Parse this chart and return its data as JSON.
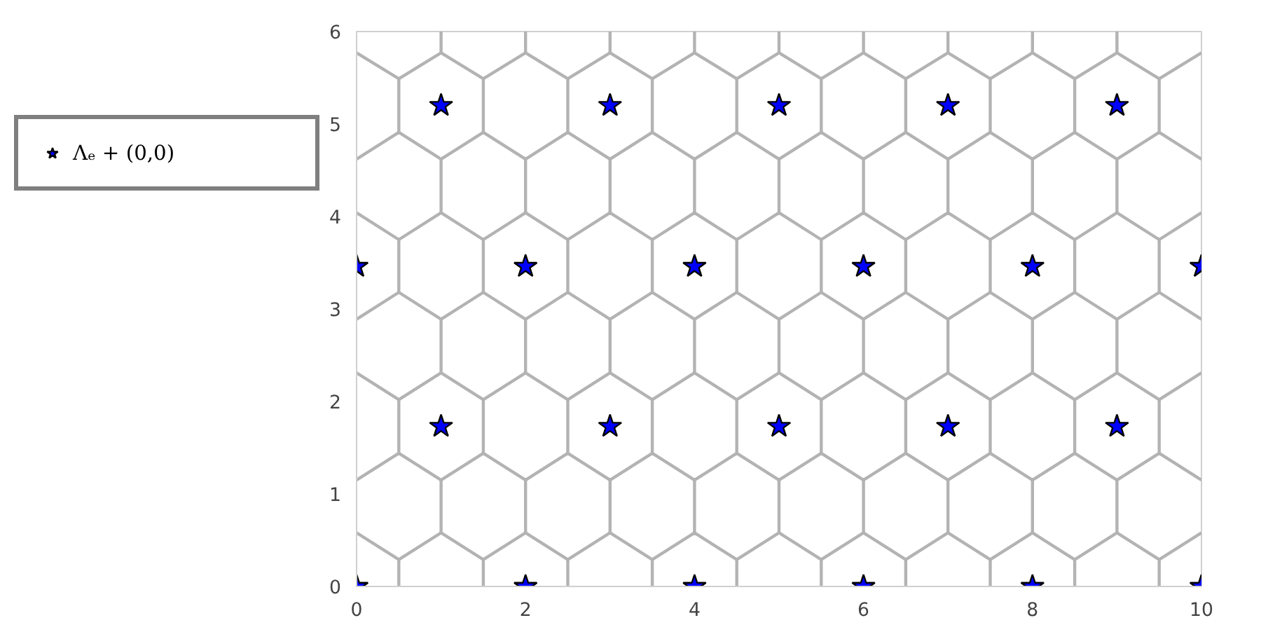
{
  "chart_data": {
    "type": "scatter",
    "legend": "left",
    "xlim": [
      0,
      10
    ],
    "ylim": [
      0,
      6
    ],
    "xticks": [
      0,
      2,
      4,
      6,
      8,
      10
    ],
    "yticks": [
      0,
      1,
      2,
      3,
      4,
      5,
      6
    ],
    "series": [
      {
        "type": "line",
        "color": "#b3b3b3",
        "x": [
          0,
          0.5,
          1,
          1.5,
          2,
          2.5,
          3,
          3.5,
          4,
          4.5,
          5,
          5.5,
          6,
          6.5,
          7,
          7.5,
          8,
          8.5,
          9,
          9.5,
          10
        ],
        "values": [
          0.58,
          0.29,
          0.58,
          0.29,
          0.58,
          0.29,
          0.58,
          0.29,
          0.58,
          0.29,
          0.58,
          0.29,
          0.58,
          0.29,
          0.58,
          0.29,
          0.58,
          0.29,
          0.58,
          0.29,
          0.58
        ]
      },
      {
        "type": "line",
        "color": "#b3b3b3",
        "x": [
          0,
          0.5,
          1,
          1.5,
          2,
          2.5,
          3,
          3.5,
          4,
          4.5,
          5,
          5.5,
          6,
          6.5,
          7,
          7.5,
          8,
          8.5,
          9,
          9.5,
          10
        ],
        "values": [
          1.15,
          1.44,
          1.15,
          1.44,
          1.15,
          1.44,
          1.15,
          1.44,
          1.15,
          1.44,
          1.15,
          1.44,
          1.15,
          1.44,
          1.15,
          1.44,
          1.15,
          1.44,
          1.15,
          1.44,
          1.15
        ]
      },
      {
        "type": "line",
        "color": "#b3b3b3",
        "x": [
          0,
          0.5,
          1,
          1.5,
          2,
          2.5,
          3,
          3.5,
          4,
          4.5,
          5,
          5.5,
          6,
          6.5,
          7,
          7.5,
          8,
          8.5,
          9,
          9.5,
          10
        ],
        "values": [
          2.31,
          2.02,
          2.31,
          2.02,
          2.31,
          2.02,
          2.31,
          2.02,
          2.31,
          2.02,
          2.31,
          2.02,
          2.31,
          2.02,
          2.31,
          2.02,
          2.31,
          2.02,
          2.31,
          2.02,
          2.31
        ]
      },
      {
        "type": "line",
        "color": "#b3b3b3",
        "x": [
          0,
          0.5,
          1,
          1.5,
          2,
          2.5,
          3,
          3.5,
          4,
          4.5,
          5,
          5.5,
          6,
          6.5,
          7,
          7.5,
          8,
          8.5,
          9,
          9.5,
          10
        ],
        "values": [
          2.89,
          3.18,
          2.89,
          3.18,
          2.89,
          3.18,
          2.89,
          3.18,
          2.89,
          3.18,
          2.89,
          3.18,
          2.89,
          3.18,
          2.89,
          3.18,
          2.89,
          3.18,
          2.89,
          3.18,
          2.89
        ]
      },
      {
        "type": "line",
        "color": "#b3b3b3",
        "x": [
          0,
          0.5,
          1,
          1.5,
          2,
          2.5,
          3,
          3.5,
          4,
          4.5,
          5,
          5.5,
          6,
          6.5,
          7,
          7.5,
          8,
          8.5,
          9,
          9.5,
          10
        ],
        "values": [
          4.04,
          3.75,
          4.04,
          3.75,
          4.04,
          3.75,
          4.04,
          3.75,
          4.04,
          3.75,
          4.04,
          3.75,
          4.04,
          3.75,
          4.04,
          3.75,
          4.04,
          3.75,
          4.04,
          3.75,
          4.04
        ]
      },
      {
        "type": "line",
        "color": "#b3b3b3",
        "x": [
          0,
          0.5,
          1,
          1.5,
          2,
          2.5,
          3,
          3.5,
          4,
          4.5,
          5,
          5.5,
          6,
          6.5,
          7,
          7.5,
          8,
          8.5,
          9,
          9.5,
          10
        ],
        "values": [
          4.62,
          4.91,
          4.62,
          4.91,
          4.62,
          4.91,
          4.62,
          4.91,
          4.62,
          4.91,
          4.62,
          4.91,
          4.62,
          4.91,
          4.62,
          4.91,
          4.62,
          4.91,
          4.62,
          4.91,
          4.62
        ]
      },
      {
        "type": "line",
        "color": "#b3b3b3",
        "x": [
          0,
          0.5,
          1,
          1.5,
          2,
          2.5,
          3,
          3.5,
          4,
          4.5,
          5,
          5.5,
          6,
          6.5,
          7,
          7.5,
          8,
          8.5,
          9,
          9.5,
          10
        ],
        "values": [
          5.77,
          5.49,
          5.77,
          5.49,
          5.77,
          5.49,
          5.77,
          5.49,
          5.77,
          5.49,
          5.77,
          5.49,
          5.77,
          5.49,
          5.77,
          5.49,
          5.77,
          5.49,
          5.77,
          5.49,
          5.77
        ]
      },
      {
        "type": "line",
        "color": "#b3b3b3",
        "x": [
          0.5,
          0.5,
          null,
          1.5,
          1.5,
          null,
          2.5,
          2.5,
          null,
          3.5,
          3.5,
          null,
          4.5,
          4.5,
          null,
          5.5,
          5.5,
          null,
          6.5,
          6.5,
          null,
          7.5,
          7.5,
          null,
          8.5,
          8.5,
          null,
          9.5,
          9.5
        ],
        "values": [
          0,
          0.29,
          null,
          0,
          0.29,
          null,
          0,
          0.29,
          null,
          0,
          0.29,
          null,
          0,
          0.29,
          null,
          0,
          0.29,
          null,
          0,
          0.29,
          null,
          0,
          0.29,
          null,
          0,
          0.29,
          null,
          0,
          0.29
        ]
      },
      {
        "type": "line",
        "color": "#b3b3b3",
        "x": [
          1,
          1,
          null,
          2,
          2,
          null,
          3,
          3,
          null,
          4,
          4,
          null,
          5,
          5,
          null,
          6,
          6,
          null,
          7,
          7,
          null,
          8,
          8,
          null,
          9,
          9
        ],
        "values": [
          0.58,
          1.15,
          null,
          0.58,
          1.15,
          null,
          0.58,
          1.15,
          null,
          0.58,
          1.15,
          null,
          0.58,
          1.15,
          null,
          0.58,
          1.15,
          null,
          0.58,
          1.15,
          null,
          0.58,
          1.15,
          null,
          0.58,
          1.15
        ]
      },
      {
        "type": "line",
        "color": "#b3b3b3",
        "x": [
          0.5,
          0.5,
          null,
          1.5,
          1.5,
          null,
          2.5,
          2.5,
          null,
          3.5,
          3.5,
          null,
          4.5,
          4.5,
          null,
          5.5,
          5.5,
          null,
          6.5,
          6.5,
          null,
          7.5,
          7.5,
          null,
          8.5,
          8.5,
          null,
          9.5,
          9.5
        ],
        "values": [
          1.44,
          2.02,
          null,
          1.44,
          2.02,
          null,
          1.44,
          2.02,
          null,
          1.44,
          2.02,
          null,
          1.44,
          2.02,
          null,
          1.44,
          2.02,
          null,
          1.44,
          2.02,
          null,
          1.44,
          2.02,
          null,
          1.44,
          2.02,
          null,
          1.44,
          2.02
        ]
      },
      {
        "type": "line",
        "color": "#b3b3b3",
        "x": [
          1,
          1,
          null,
          2,
          2,
          null,
          3,
          3,
          null,
          4,
          4,
          null,
          5,
          5,
          null,
          6,
          6,
          null,
          7,
          7,
          null,
          8,
          8,
          null,
          9,
          9
        ],
        "values": [
          2.31,
          2.89,
          null,
          2.31,
          2.89,
          null,
          2.31,
          2.89,
          null,
          2.31,
          2.89,
          null,
          2.31,
          2.89,
          null,
          2.31,
          2.89,
          null,
          2.31,
          2.89,
          null,
          2.31,
          2.89,
          null,
          2.31,
          2.89
        ]
      },
      {
        "type": "line",
        "color": "#b3b3b3",
        "x": [
          0.5,
          0.5,
          null,
          1.5,
          1.5,
          null,
          2.5,
          2.5,
          null,
          3.5,
          3.5,
          null,
          4.5,
          4.5,
          null,
          5.5,
          5.5,
          null,
          6.5,
          6.5,
          null,
          7.5,
          7.5,
          null,
          8.5,
          8.5,
          null,
          9.5,
          9.5
        ],
        "values": [
          3.18,
          3.75,
          null,
          3.18,
          3.75,
          null,
          3.18,
          3.75,
          null,
          3.18,
          3.75,
          null,
          3.18,
          3.75,
          null,
          3.18,
          3.75,
          null,
          3.18,
          3.75,
          null,
          3.18,
          3.75,
          null,
          3.18,
          3.75,
          null,
          3.18,
          3.75
        ]
      },
      {
        "type": "line",
        "color": "#b3b3b3",
        "x": [
          1,
          1,
          null,
          2,
          2,
          null,
          3,
          3,
          null,
          4,
          4,
          null,
          5,
          5,
          null,
          6,
          6,
          null,
          7,
          7,
          null,
          8,
          8,
          null,
          9,
          9
        ],
        "values": [
          4.04,
          4.62,
          null,
          4.04,
          4.62,
          null,
          4.04,
          4.62,
          null,
          4.04,
          4.62,
          null,
          4.04,
          4.62,
          null,
          4.04,
          4.62,
          null,
          4.04,
          4.62,
          null,
          4.04,
          4.62,
          null,
          4.04,
          4.62
        ]
      },
      {
        "type": "line",
        "color": "#b3b3b3",
        "x": [
          0.5,
          0.5,
          null,
          1.5,
          1.5,
          null,
          2.5,
          2.5,
          null,
          3.5,
          3.5,
          null,
          4.5,
          4.5,
          null,
          5.5,
          5.5,
          null,
          6.5,
          6.5,
          null,
          7.5,
          7.5,
          null,
          8.5,
          8.5,
          null,
          9.5,
          9.5
        ],
        "values": [
          4.91,
          5.49,
          null,
          4.91,
          5.49,
          null,
          4.91,
          5.49,
          null,
          4.91,
          5.49,
          null,
          4.91,
          5.49,
          null,
          4.91,
          5.49,
          null,
          4.91,
          5.49,
          null,
          4.91,
          5.49,
          null,
          4.91,
          5.49,
          null,
          4.91,
          5.49
        ]
      },
      {
        "type": "line",
        "color": "#b3b3b3",
        "x": [
          1,
          1,
          null,
          2,
          2,
          null,
          3,
          3,
          null,
          4,
          4,
          null,
          5,
          5,
          null,
          6,
          6,
          null,
          7,
          7,
          null,
          8,
          8,
          null,
          9,
          9
        ],
        "values": [
          5.77,
          6,
          null,
          5.77,
          6,
          null,
          5.77,
          6,
          null,
          5.77,
          6,
          null,
          5.77,
          6,
          null,
          5.77,
          6,
          null,
          5.77,
          6,
          null,
          5.77,
          6,
          null,
          5.77,
          6
        ]
      },
      {
        "name": "Λₑ + (0,0)",
        "marker": "star",
        "color": "#0000ff",
        "x": [
          0,
          2,
          4,
          6,
          8,
          10,
          1,
          3,
          5,
          7,
          9,
          0,
          2,
          4,
          6,
          8,
          10,
          1,
          3,
          5,
          7,
          9
        ],
        "values": [
          0,
          0,
          0,
          0,
          0,
          0,
          1.73,
          1.73,
          1.73,
          1.73,
          1.73,
          3.46,
          3.46,
          3.46,
          3.46,
          3.46,
          3.46,
          5.2,
          5.2,
          5.2,
          5.2,
          5.2
        ]
      }
    ]
  }
}
